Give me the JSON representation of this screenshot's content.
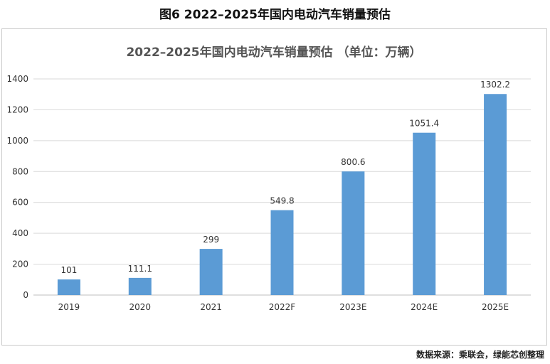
{
  "figure_title": "图6 2022–2025年国内电动汽车销量预估",
  "source_note": "数据来源：乘联会，绿能芯创整理",
  "chart_data": {
    "type": "bar",
    "title": "2022–2025年国内电动汽车销量预估 （单位：万辆）",
    "xlabel": "",
    "ylabel": "",
    "categories": [
      "2019",
      "2020",
      "2021",
      "2022F",
      "2023E",
      "2024E",
      "2025E"
    ],
    "values": [
      101,
      111.1,
      299,
      549.8,
      800.6,
      1051.4,
      1302.2
    ],
    "data_labels": [
      "101",
      "111.1",
      "299",
      "549.8",
      "800.6",
      "1051.4",
      "1302.2"
    ],
    "yticks": [
      0,
      200,
      400,
      600,
      800,
      1000,
      1200,
      1400
    ],
    "ylim": [
      0,
      1400
    ],
    "grid": true,
    "legend": "none",
    "bar_color": "#5b9bd5"
  }
}
